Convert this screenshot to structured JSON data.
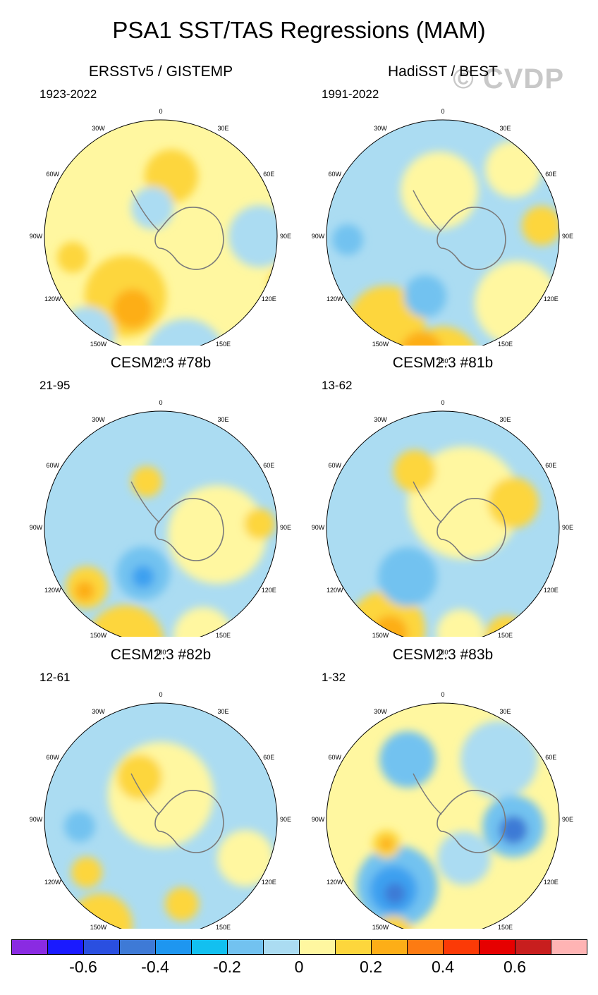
{
  "title": "PSA1 SST/TAS Regressions (MAM)",
  "watermark": "© CVDP",
  "lon_labels": [
    "0",
    "30E",
    "60E",
    "90E",
    "120E",
    "150E",
    "180",
    "150W",
    "120W",
    "90W",
    "60W",
    "30W"
  ],
  "panels": [
    {
      "title": "ERSSTv5 / GISTEMP",
      "period": "1923-2022",
      "blobs": [
        {
          "c": "#fff7a0",
          "x": 200,
          "y": 245,
          "r": 160
        },
        {
          "c": "#fdd63c",
          "x": 215,
          "y": 160,
          "r": 38
        },
        {
          "c": "#fdd63c",
          "x": 150,
          "y": 330,
          "r": 58
        },
        {
          "c": "#fdae17",
          "x": 160,
          "y": 348,
          "r": 28
        },
        {
          "c": "#abdcf2",
          "x": 235,
          "y": 420,
          "r": 58
        },
        {
          "c": "#abdcf2",
          "x": 340,
          "y": 245,
          "r": 44
        },
        {
          "c": "#abdcf2",
          "x": 188,
          "y": 205,
          "r": 30
        },
        {
          "c": "#abdcf2",
          "x": 95,
          "y": 385,
          "r": 40
        },
        {
          "c": "#fdd63c",
          "x": 375,
          "y": 310,
          "r": 22
        },
        {
          "c": "#fdd63c",
          "x": 75,
          "y": 275,
          "r": 22
        }
      ]
    },
    {
      "title": "HadiSST / BEST",
      "period": "1991-2022",
      "blobs": [
        {
          "c": "#abdcf2",
          "x": 200,
          "y": 245,
          "r": 165
        },
        {
          "c": "#fff7a0",
          "x": 195,
          "y": 180,
          "r": 55
        },
        {
          "c": "#fff7a0",
          "x": 305,
          "y": 340,
          "r": 60
        },
        {
          "c": "#fdd63c",
          "x": 120,
          "y": 370,
          "r": 55
        },
        {
          "c": "#fdd63c",
          "x": 200,
          "y": 425,
          "r": 52
        },
        {
          "c": "#fdae17",
          "x": 170,
          "y": 410,
          "r": 30
        },
        {
          "c": "#fdd63c",
          "x": 340,
          "y": 230,
          "r": 28
        },
        {
          "c": "#72c2f0",
          "x": 65,
          "y": 250,
          "r": 22
        },
        {
          "c": "#72c2f0",
          "x": 175,
          "y": 330,
          "r": 30
        },
        {
          "c": "#fff7a0",
          "x": 300,
          "y": 150,
          "r": 40
        }
      ]
    },
    {
      "title": "CESM2.3 #78b",
      "period": "21-95",
      "blobs": [
        {
          "c": "#abdcf2",
          "x": 200,
          "y": 245,
          "r": 165
        },
        {
          "c": "#fff7a0",
          "x": 280,
          "y": 255,
          "r": 70
        },
        {
          "c": "#fdd63c",
          "x": 150,
          "y": 410,
          "r": 55
        },
        {
          "c": "#fdd63c",
          "x": 95,
          "y": 330,
          "r": 30
        },
        {
          "c": "#fdae17",
          "x": 92,
          "y": 335,
          "r": 14
        },
        {
          "c": "#72c2f0",
          "x": 175,
          "y": 310,
          "r": 38
        },
        {
          "c": "#3ea0f0",
          "x": 175,
          "y": 315,
          "r": 16
        },
        {
          "c": "#fdd63c",
          "x": 180,
          "y": 180,
          "r": 22
        },
        {
          "c": "#fdd63c",
          "x": 340,
          "y": 240,
          "r": 22
        },
        {
          "c": "#fff7a0",
          "x": 260,
          "y": 400,
          "r": 42
        }
      ]
    },
    {
      "title": "CESM2.3 #81b",
      "period": "13-62",
      "blobs": [
        {
          "c": "#abdcf2",
          "x": 200,
          "y": 245,
          "r": 165
        },
        {
          "c": "#fff7a0",
          "x": 230,
          "y": 210,
          "r": 80
        },
        {
          "c": "#fdd63c",
          "x": 160,
          "y": 165,
          "r": 30
        },
        {
          "c": "#fdd63c",
          "x": 300,
          "y": 210,
          "r": 36
        },
        {
          "c": "#fdd63c",
          "x": 120,
          "y": 390,
          "r": 55
        },
        {
          "c": "#fdae17",
          "x": 125,
          "y": 395,
          "r": 25
        },
        {
          "c": "#72c2f0",
          "x": 150,
          "y": 315,
          "r": 42
        },
        {
          "c": "#fdd63c",
          "x": 290,
          "y": 400,
          "r": 30
        },
        {
          "c": "#fff7a0",
          "x": 225,
          "y": 395,
          "r": 34
        }
      ]
    },
    {
      "title": "CESM2.3 #82b",
      "period": "12-61",
      "blobs": [
        {
          "c": "#abdcf2",
          "x": 200,
          "y": 245,
          "r": 165
        },
        {
          "c": "#fff7a0",
          "x": 200,
          "y": 210,
          "r": 75
        },
        {
          "c": "#fdd63c",
          "x": 170,
          "y": 185,
          "r": 32
        },
        {
          "c": "#fdd63c",
          "x": 115,
          "y": 395,
          "r": 45
        },
        {
          "c": "#fdd63c",
          "x": 95,
          "y": 320,
          "r": 22
        },
        {
          "c": "#fff7a0",
          "x": 320,
          "y": 300,
          "r": 40
        },
        {
          "c": "#fdd63c",
          "x": 230,
          "y": 365,
          "r": 24
        },
        {
          "c": "#72c2f0",
          "x": 85,
          "y": 255,
          "r": 22
        }
      ]
    },
    {
      "title": "CESM2.3 #83b",
      "period": "1-32",
      "blobs": [
        {
          "c": "#fff7a0",
          "x": 200,
          "y": 245,
          "r": 165
        },
        {
          "c": "#abdcf2",
          "x": 280,
          "y": 160,
          "r": 55
        },
        {
          "c": "#72c2f0",
          "x": 150,
          "y": 160,
          "r": 40
        },
        {
          "c": "#72c2f0",
          "x": 300,
          "y": 255,
          "r": 44
        },
        {
          "c": "#3e7ad6",
          "x": 300,
          "y": 260,
          "r": 20
        },
        {
          "c": "#72c2f0",
          "x": 135,
          "y": 340,
          "r": 58
        },
        {
          "c": "#3ea0f0",
          "x": 130,
          "y": 345,
          "r": 34
        },
        {
          "c": "#3e7ad6",
          "x": 132,
          "y": 350,
          "r": 15
        },
        {
          "c": "#fdd63c",
          "x": 120,
          "y": 280,
          "r": 20
        },
        {
          "c": "#fdae17",
          "x": 120,
          "y": 280,
          "r": 9
        },
        {
          "c": "#fdd63c",
          "x": 130,
          "y": 410,
          "r": 28
        },
        {
          "c": "#abdcf2",
          "x": 230,
          "y": 300,
          "r": 38
        }
      ]
    }
  ],
  "colorbar": {
    "colors": [
      "#8a2be2",
      "#1a1aff",
      "#2a4fe0",
      "#3e7ad6",
      "#1e96f0",
      "#12c0f0",
      "#72c2f0",
      "#abdcf2",
      "#fff7a0",
      "#fdd63c",
      "#fdae17",
      "#fd7b12",
      "#fc3a06",
      "#e60000",
      "#c81e1e",
      "#ffb4b4"
    ],
    "ticks": [
      "-0.6",
      "-0.4",
      "-0.2",
      "0",
      "0.2",
      "0.4",
      "0.6"
    ]
  }
}
